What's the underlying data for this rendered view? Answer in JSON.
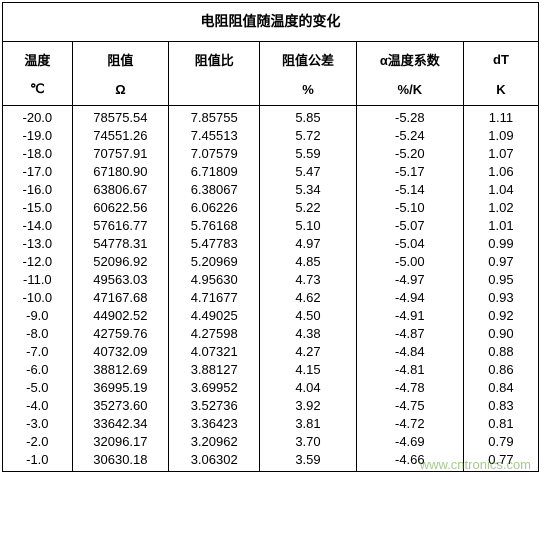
{
  "title": "电阻阻值随温度的变化",
  "columns": [
    {
      "label": "温度",
      "unit": "℃"
    },
    {
      "label": "阻值",
      "unit": "Ω"
    },
    {
      "label": "阻值比",
      "unit": ""
    },
    {
      "label": "阻值公差",
      "unit": "%"
    },
    {
      "label": "α温度系数",
      "unit": "%/K"
    },
    {
      "label": "dT",
      "unit": "K"
    }
  ],
  "rows": [
    [
      "-20.0",
      "78575.54",
      "7.85755",
      "5.85",
      "-5.28",
      "1.11"
    ],
    [
      "-19.0",
      "74551.26",
      "7.45513",
      "5.72",
      "-5.24",
      "1.09"
    ],
    [
      "-18.0",
      "70757.91",
      "7.07579",
      "5.59",
      "-5.20",
      "1.07"
    ],
    [
      "-17.0",
      "67180.90",
      "6.71809",
      "5.47",
      "-5.17",
      "1.06"
    ],
    [
      "-16.0",
      "63806.67",
      "6.38067",
      "5.34",
      "-5.14",
      "1.04"
    ],
    [
      "-15.0",
      "60622.56",
      "6.06226",
      "5.22",
      "-5.10",
      "1.02"
    ],
    [
      "-14.0",
      "57616.77",
      "5.76168",
      "5.10",
      "-5.07",
      "1.01"
    ],
    [
      "-13.0",
      "54778.31",
      "5.47783",
      "4.97",
      "-5.04",
      "0.99"
    ],
    [
      "-12.0",
      "52096.92",
      "5.20969",
      "4.85",
      "-5.00",
      "0.97"
    ],
    [
      "-11.0",
      "49563.03",
      "4.95630",
      "4.73",
      "-4.97",
      "0.95"
    ],
    [
      "-10.0",
      "47167.68",
      "4.71677",
      "4.62",
      "-4.94",
      "0.93"
    ],
    [
      "-9.0",
      "44902.52",
      "4.49025",
      "4.50",
      "-4.91",
      "0.92"
    ],
    [
      "-8.0",
      "42759.76",
      "4.27598",
      "4.38",
      "-4.87",
      "0.90"
    ],
    [
      "-7.0",
      "40732.09",
      "4.07321",
      "4.27",
      "-4.84",
      "0.88"
    ],
    [
      "-6.0",
      "38812.69",
      "3.88127",
      "4.15",
      "-4.81",
      "0.86"
    ],
    [
      "-5.0",
      "36995.19",
      "3.69952",
      "4.04",
      "-4.78",
      "0.84"
    ],
    [
      "-4.0",
      "35273.60",
      "3.52736",
      "3.92",
      "-4.75",
      "0.83"
    ],
    [
      "-3.0",
      "33642.34",
      "3.36423",
      "3.81",
      "-4.72",
      "0.81"
    ],
    [
      "-2.0",
      "32096.17",
      "3.20962",
      "3.70",
      "-4.69",
      "0.79"
    ],
    [
      "-1.0",
      "30630.18",
      "3.06302",
      "3.59",
      "-4.66",
      "0.77"
    ]
  ],
  "watermark": "www.cntronics.com",
  "style": {
    "font_family": "SimSun, Arial, sans-serif",
    "title_fontsize_pt": 14,
    "header_fontsize_pt": 13,
    "body_fontsize_pt": 13,
    "title_fontweight": "bold",
    "header_fontweight": "bold",
    "body_fontweight": "normal",
    "border_color": "#000000",
    "background_color": "#ffffff",
    "text_color": "#000000",
    "watermark_color": "#5da12f",
    "watermark_opacity": 0.55,
    "column_widths_pct": [
      13,
      18,
      17,
      18,
      20,
      14
    ],
    "cell_align": "center"
  }
}
